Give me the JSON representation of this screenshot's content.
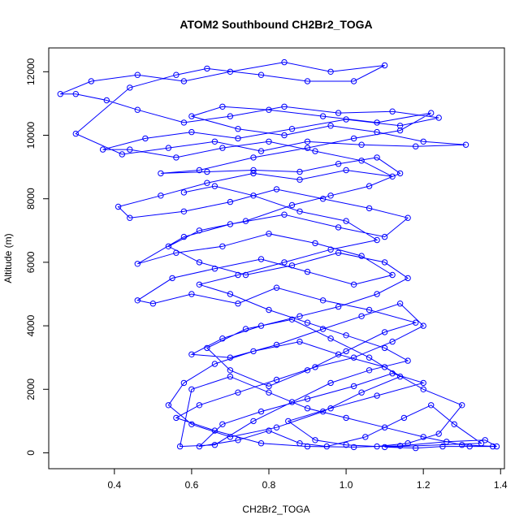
{
  "chart_data": {
    "type": "scatter",
    "title": "ATOM2 Southbound CH2Br2_TOGA",
    "xlabel": "CH2Br2_TOGA",
    "ylabel": "Altitude (m)",
    "xlim": [
      0.23,
      1.41
    ],
    "ylim": [
      -500,
      12750
    ],
    "x_ticks": [
      0.4,
      0.6,
      0.8,
      1.0,
      1.2,
      1.4
    ],
    "x_tick_labels": [
      "0.4",
      "0.6",
      "0.8",
      "1.0",
      "1.2",
      "1.4"
    ],
    "y_ticks": [
      0,
      2000,
      4000,
      6000,
      8000,
      10000,
      12000
    ],
    "y_tick_labels": [
      "0",
      "2000",
      "4000",
      "6000",
      "8000",
      "10000",
      "12000"
    ],
    "grid": false,
    "legend": "none",
    "series": [
      {
        "color": "#0000ff",
        "marker": "open-circle",
        "line": true,
        "points": [
          [
            1.38,
            200
          ],
          [
            1.32,
            200
          ],
          [
            1.25,
            200
          ],
          [
            1.18,
            150
          ],
          [
            1.1,
            180
          ],
          [
            1.35,
            300
          ],
          [
            1.28,
            900
          ],
          [
            1.22,
            1500
          ],
          [
            1.15,
            1100
          ],
          [
            1.05,
            500
          ],
          [
            0.95,
            200
          ],
          [
            0.88,
            300
          ],
          [
            0.8,
            700
          ],
          [
            0.72,
            400
          ],
          [
            0.62,
            200
          ],
          [
            0.68,
            900
          ],
          [
            0.78,
            1300
          ],
          [
            0.9,
            1700
          ],
          [
            1.02,
            2100
          ],
          [
            1.12,
            2500
          ],
          [
            1.2,
            2200
          ],
          [
            1.08,
            1800
          ],
          [
            0.96,
            1400
          ],
          [
            0.85,
            1000
          ],
          [
            0.92,
            400
          ],
          [
            1.0,
            250
          ],
          [
            1.08,
            200
          ],
          [
            1.16,
            300
          ],
          [
            1.24,
            600
          ],
          [
            1.3,
            1500
          ],
          [
            1.2,
            2000
          ],
          [
            1.1,
            2700
          ],
          [
            0.98,
            3100
          ],
          [
            0.88,
            3500
          ],
          [
            0.76,
            3200
          ],
          [
            0.66,
            2800
          ],
          [
            0.58,
            2200
          ],
          [
            0.54,
            1500
          ],
          [
            0.6,
            900
          ],
          [
            0.7,
            500
          ],
          [
            0.82,
            800
          ],
          [
            0.94,
            1300
          ],
          [
            1.04,
            1900
          ],
          [
            1.14,
            2400
          ],
          [
            1.06,
            3000
          ],
          [
            0.96,
            3600
          ],
          [
            0.86,
            4200
          ],
          [
            0.74,
            3900
          ],
          [
            0.64,
            3300
          ],
          [
            0.7,
            2600
          ],
          [
            0.8,
            2100
          ],
          [
            0.9,
            2600
          ],
          [
            1.0,
            3200
          ],
          [
            1.1,
            3800
          ],
          [
            1.18,
            4100
          ],
          [
            1.06,
            4500
          ],
          [
            0.94,
            4800
          ],
          [
            0.82,
            5200
          ],
          [
            0.72,
            4700
          ],
          [
            0.6,
            5000
          ],
          [
            0.5,
            4700
          ],
          [
            0.46,
            4800
          ],
          [
            0.55,
            5500
          ],
          [
            0.66,
            5800
          ],
          [
            0.78,
            6100
          ],
          [
            0.9,
            5700
          ],
          [
            1.02,
            5300
          ],
          [
            1.12,
            5600
          ],
          [
            1.04,
            6200
          ],
          [
            0.92,
            6600
          ],
          [
            0.8,
            6900
          ],
          [
            0.68,
            6500
          ],
          [
            0.56,
            6300
          ],
          [
            0.46,
            5950
          ],
          [
            0.58,
            6800
          ],
          [
            0.7,
            7200
          ],
          [
            0.84,
            7500
          ],
          [
            0.98,
            7100
          ],
          [
            1.1,
            6800
          ],
          [
            1.16,
            7400
          ],
          [
            1.06,
            7700
          ],
          [
            0.94,
            8000
          ],
          [
            0.82,
            8300
          ],
          [
            0.7,
            7900
          ],
          [
            0.58,
            7600
          ],
          [
            0.44,
            7400
          ],
          [
            0.41,
            7750
          ],
          [
            0.52,
            8100
          ],
          [
            0.64,
            8500
          ],
          [
            0.76,
            8800
          ],
          [
            0.88,
            8600
          ],
          [
            1.0,
            8900
          ],
          [
            1.12,
            8700
          ],
          [
            1.04,
            9200
          ],
          [
            0.92,
            9500
          ],
          [
            0.8,
            9800
          ],
          [
            0.68,
            9600
          ],
          [
            0.56,
            9300
          ],
          [
            0.44,
            9550
          ],
          [
            0.37,
            9550
          ],
          [
            0.48,
            9900
          ],
          [
            0.6,
            10100
          ],
          [
            0.72,
            9900
          ],
          [
            0.86,
            10200
          ],
          [
            1.0,
            10500
          ],
          [
            1.14,
            10300
          ],
          [
            1.24,
            10550
          ],
          [
            1.12,
            10750
          ],
          [
            0.98,
            10700
          ],
          [
            0.84,
            10900
          ],
          [
            0.7,
            10600
          ],
          [
            0.58,
            10400
          ],
          [
            0.46,
            10800
          ],
          [
            0.38,
            11100
          ],
          [
            0.3,
            11300
          ],
          [
            0.26,
            11300
          ],
          [
            0.34,
            11700
          ],
          [
            0.46,
            11900
          ],
          [
            0.58,
            11700
          ],
          [
            0.7,
            12000
          ],
          [
            0.84,
            12300
          ],
          [
            0.96,
            12000
          ],
          [
            1.1,
            12200
          ],
          [
            1.02,
            11700
          ],
          [
            0.9,
            11700
          ],
          [
            0.78,
            11900
          ],
          [
            0.64,
            12100
          ],
          [
            0.56,
            11900
          ],
          [
            0.44,
            11500
          ],
          [
            0.3,
            10050
          ],
          [
            0.42,
            9400
          ],
          [
            0.54,
            9600
          ],
          [
            0.66,
            9800
          ],
          [
            0.78,
            9500
          ],
          [
            0.9,
            9800
          ],
          [
            1.04,
            9700
          ],
          [
            1.18,
            9650
          ],
          [
            1.31,
            9700
          ],
          [
            1.2,
            9800
          ],
          [
            1.08,
            10100
          ],
          [
            0.96,
            10300
          ],
          [
            0.84,
            10000
          ],
          [
            0.72,
            10200
          ],
          [
            0.6,
            10600
          ],
          [
            0.68,
            10900
          ],
          [
            0.8,
            10800
          ],
          [
            0.94,
            10600
          ],
          [
            1.08,
            10400
          ],
          [
            1.22,
            10700
          ],
          [
            1.14,
            10150
          ],
          [
            1.02,
            9900
          ],
          [
            0.9,
            9600
          ],
          [
            0.76,
            9300
          ],
          [
            0.62,
            8900
          ],
          [
            0.52,
            8800
          ],
          [
            0.64,
            8850
          ],
          [
            0.76,
            8900
          ],
          [
            0.88,
            8850
          ],
          [
            0.98,
            9100
          ],
          [
            1.08,
            9300
          ],
          [
            1.14,
            8800
          ],
          [
            1.06,
            8400
          ],
          [
            0.96,
            8100
          ],
          [
            0.86,
            7800
          ],
          [
            0.74,
            7300
          ],
          [
            0.62,
            7000
          ],
          [
            0.54,
            6500
          ],
          [
            0.62,
            6000
          ],
          [
            0.74,
            5600
          ],
          [
            0.86,
            5900
          ],
          [
            0.98,
            6300
          ],
          [
            1.1,
            6000
          ],
          [
            1.16,
            5500
          ],
          [
            1.08,
            5000
          ],
          [
            0.98,
            4600
          ],
          [
            0.88,
            4300
          ],
          [
            0.78,
            4000
          ],
          [
            0.68,
            3600
          ],
          [
            0.6,
            3100
          ],
          [
            0.7,
            3000
          ],
          [
            0.82,
            3400
          ],
          [
            0.94,
            3900
          ],
          [
            1.04,
            4300
          ],
          [
            1.14,
            4700
          ],
          [
            1.2,
            4000
          ],
          [
            1.12,
            3500
          ],
          [
            1.02,
            3000
          ],
          [
            0.92,
            2700
          ],
          [
            0.82,
            2300
          ],
          [
            0.72,
            1900
          ],
          [
            0.62,
            1500
          ],
          [
            0.56,
            1100
          ],
          [
            0.66,
            700
          ],
          [
            0.78,
            300
          ],
          [
            0.9,
            200
          ],
          [
            1.02,
            180
          ],
          [
            1.14,
            220
          ],
          [
            1.26,
            350
          ],
          [
            1.36,
            400
          ],
          [
            1.39,
            200
          ],
          [
            1.3,
            250
          ],
          [
            1.2,
            500
          ],
          [
            1.1,
            800
          ],
          [
            1.0,
            1100
          ],
          [
            0.9,
            1400
          ],
          [
            0.8,
            1900
          ],
          [
            0.7,
            2400
          ],
          [
            0.6,
            2000
          ],
          [
            0.57,
            200
          ],
          [
            0.66,
            250
          ],
          [
            0.76,
            1000
          ],
          [
            0.86,
            1600
          ],
          [
            0.96,
            2200
          ],
          [
            1.06,
            2600
          ],
          [
            1.16,
            2900
          ],
          [
            1.1,
            3300
          ],
          [
            1.0,
            3700
          ],
          [
            0.9,
            4100
          ],
          [
            0.8,
            4500
          ],
          [
            0.7,
            5000
          ],
          [
            0.62,
            5300
          ],
          [
            0.72,
            5600
          ],
          [
            0.84,
            6000
          ],
          [
            0.96,
            6400
          ],
          [
            1.08,
            6700
          ],
          [
            1.0,
            7300
          ],
          [
            0.88,
            7600
          ],
          [
            0.76,
            8100
          ],
          [
            0.66,
            8400
          ],
          [
            0.58,
            8200
          ]
        ]
      }
    ]
  }
}
